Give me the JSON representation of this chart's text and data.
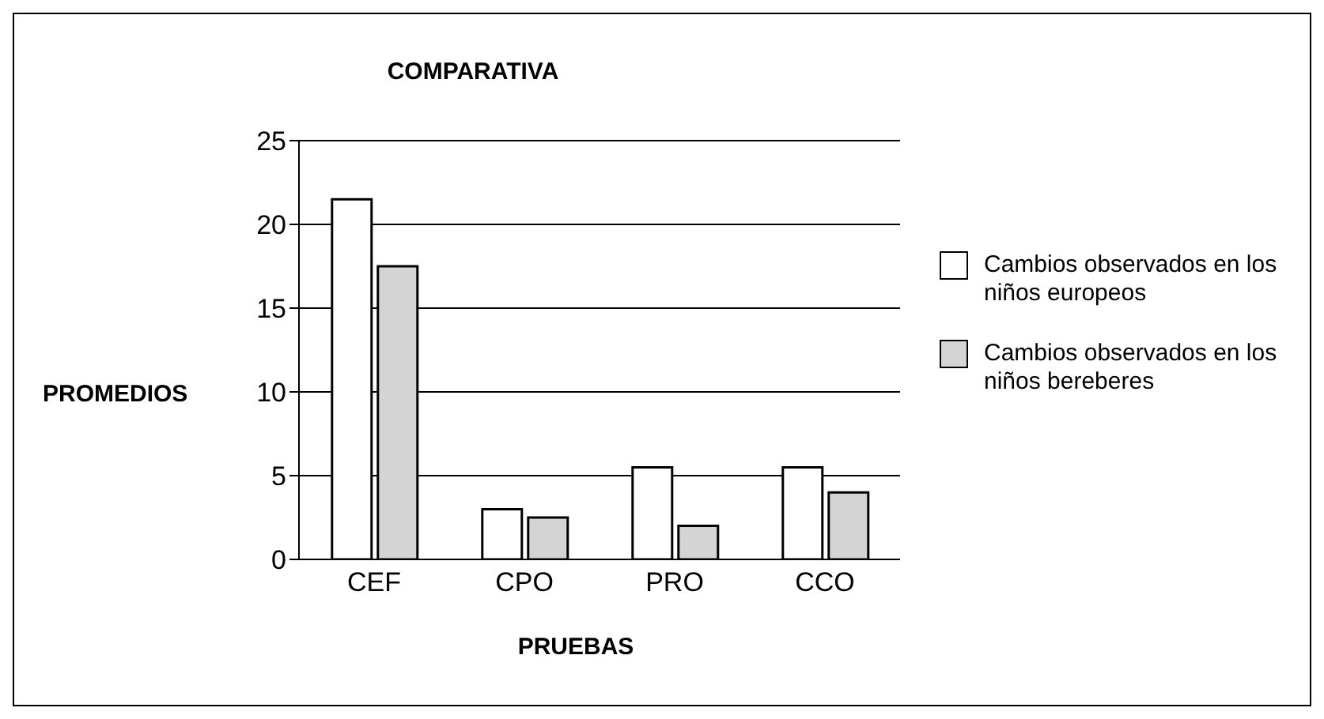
{
  "chart_data": {
    "type": "bar",
    "title": "COMPARATIVA",
    "xlabel": "PRUEBAS",
    "ylabel": "PROMEDIOS",
    "categories": [
      "CEF",
      "CPO",
      "PRO",
      "CCO"
    ],
    "series": [
      {
        "name": "Cambios observados en los niños europeos",
        "color": "#ffffff",
        "values": [
          21.5,
          3,
          5.5,
          5.5
        ]
      },
      {
        "name": "Cambios observados en los niños bereberes",
        "color": "#d4d4d4",
        "values": [
          17.5,
          2.5,
          2,
          4
        ]
      }
    ],
    "ylim": [
      0,
      25
    ],
    "yticks": [
      0,
      5,
      10,
      15,
      20,
      25
    ],
    "grid": "y",
    "legend": "right"
  }
}
